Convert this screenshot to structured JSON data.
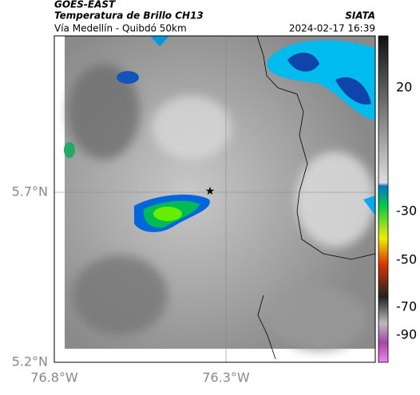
{
  "header": {
    "source": "GOES-EAST",
    "title": "Temperatura de Brillo CH13",
    "brand": "SIATA",
    "route": "Vía Medellín - Quibdó 50km",
    "timestamp": "2024-02-17 16:39"
  },
  "axes": {
    "y_labels": [
      "5.7°N",
      "5.2°N"
    ],
    "x_labels": [
      "76.8°W",
      "76.3°W"
    ]
  },
  "colorbar": {
    "labels": [
      "20",
      "-30",
      "-50",
      "-70",
      "-90"
    ]
  }
}
